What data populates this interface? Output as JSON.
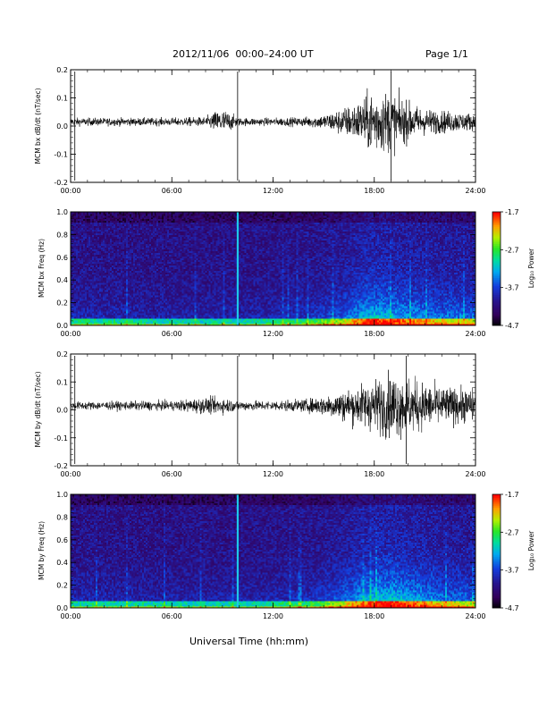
{
  "header": {
    "title": "2012/11/06  00:00–24:00 UT",
    "page": "Page 1/1"
  },
  "footer": {
    "xlabel": "Universal Time (hh:mm)"
  },
  "colorbar": {
    "label": "Log₁₀ Power",
    "ticks": [
      "-1.7",
      "-2.7",
      "-3.7",
      "-4.7"
    ]
  },
  "chart_data": [
    {
      "type": "line",
      "ylabel": "MCM bx dB/dt (nT/sec)",
      "xlabel": "",
      "x_ticks": [
        "00:00",
        "06:00",
        "12:00",
        "18:00",
        "24:00"
      ],
      "y_ticks": [
        "0.2",
        "0.1",
        "0.0",
        "-0.1",
        "-0.2"
      ],
      "xlim": [
        0,
        24
      ],
      "ylim": [
        -0.2,
        0.2
      ],
      "spikes_hours": [
        0.25,
        9.9,
        19.0
      ],
      "envelope": {
        "hours": [
          0,
          6,
          8,
          8.5,
          9,
          10,
          12,
          14,
          15,
          16,
          17,
          17.5,
          18,
          19,
          20,
          21,
          22,
          23,
          24
        ],
        "amplitude": [
          0.012,
          0.012,
          0.015,
          0.03,
          0.04,
          0.012,
          0.012,
          0.015,
          0.022,
          0.04,
          0.06,
          0.08,
          0.1,
          0.09,
          0.06,
          0.04,
          0.035,
          0.03,
          0.025
        ]
      }
    },
    {
      "type": "heatmap",
      "ylabel": "MCM bx Freq (Hz)",
      "xlabel": "",
      "x_ticks": [
        "00:00",
        "06:00",
        "12:00",
        "18:00",
        "24:00"
      ],
      "y_ticks": [
        "1.0",
        "0.8",
        "0.6",
        "0.4",
        "0.2",
        "0.0"
      ],
      "xlim": [
        0,
        24
      ],
      "ylim": [
        0,
        1.0
      ],
      "zlim": [
        -4.7,
        -1.7
      ],
      "bright_line_hours": [
        9.9
      ],
      "activity": {
        "hours": [
          0,
          6,
          10,
          14,
          16,
          17,
          17.5,
          18,
          19,
          20,
          22,
          24
        ],
        "level": [
          0.25,
          0.2,
          0.2,
          0.3,
          0.5,
          0.7,
          0.8,
          0.85,
          0.8,
          0.7,
          0.6,
          0.55
        ]
      }
    },
    {
      "type": "line",
      "ylabel": "MCM by dB/dt (nT/sec)",
      "xlabel": "",
      "x_ticks": [
        "00:00",
        "06:00",
        "12:00",
        "18:00",
        "24:00"
      ],
      "y_ticks": [
        "0.2",
        "0.1",
        "0.0",
        "-0.1",
        "-0.2"
      ],
      "xlim": [
        0,
        24
      ],
      "ylim": [
        -0.2,
        0.2
      ],
      "spikes_hours": [
        0.25,
        9.9,
        19.9
      ],
      "envelope": {
        "hours": [
          0,
          6,
          8,
          9,
          10,
          12,
          14,
          15,
          16,
          17,
          18,
          19,
          20,
          21,
          22,
          23,
          24
        ],
        "amplitude": [
          0.012,
          0.015,
          0.025,
          0.025,
          0.015,
          0.015,
          0.02,
          0.03,
          0.045,
          0.06,
          0.08,
          0.1,
          0.09,
          0.07,
          0.06,
          0.055,
          0.05
        ]
      }
    },
    {
      "type": "heatmap",
      "ylabel": "MCM by Freq (Hz)",
      "xlabel": "Universal Time (hh:mm)",
      "x_ticks": [
        "00:00",
        "06:00",
        "12:00",
        "18:00",
        "24:00"
      ],
      "y_ticks": [
        "1.0",
        "0.8",
        "0.6",
        "0.4",
        "0.2",
        "0.0"
      ],
      "xlim": [
        0,
        24
      ],
      "ylim": [
        0,
        1.0
      ],
      "zlim": [
        -4.7,
        -1.7
      ],
      "bright_line_hours": [
        9.9
      ],
      "activity": {
        "hours": [
          0,
          6,
          10,
          14,
          16,
          17,
          18,
          19,
          20,
          22,
          24
        ],
        "level": [
          0.25,
          0.2,
          0.2,
          0.3,
          0.5,
          0.7,
          0.85,
          0.9,
          0.8,
          0.6,
          0.5
        ]
      }
    }
  ]
}
